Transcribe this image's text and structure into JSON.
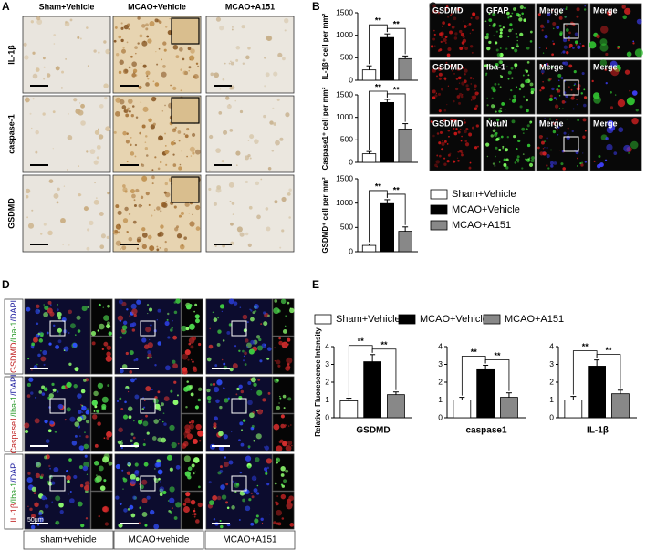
{
  "panel_labels": [
    "A",
    "B",
    "C",
    "D",
    "E"
  ],
  "panel_a": {
    "columns": [
      "Sham+Vehicle",
      "MCAO+Vehicle",
      "MCAO+A151"
    ],
    "rows": [
      "IL-1β",
      "caspase-1",
      "GSDMD"
    ]
  },
  "panel_c": {
    "rows": [
      [
        "GSDMD",
        "GFAP",
        "Merge",
        "Merge"
      ],
      [
        "GSDMD",
        "Iba-1",
        "Merge",
        "Merge"
      ],
      [
        "GSDMD",
        "NeuN",
        "Merge",
        "Merge"
      ]
    ]
  },
  "panel_d": {
    "rows": [
      [
        "GSDMD",
        "/Iba-1",
        "/DAPI"
      ],
      [
        "Caspase1",
        "/Iba-1",
        "/DAPI"
      ],
      [
        "IL-1β",
        "/Iba-1",
        "/DAPI"
      ]
    ],
    "columns": [
      "sham+vehicle",
      "MCAO+vehicle",
      "MCAO+A151"
    ],
    "scale_bar": "50μm"
  },
  "legend_b": {
    "items": [
      {
        "label": "Sham+Vehicle",
        "color": "#ffffff"
      },
      {
        "label": "MCAO+Vehicle",
        "color": "#000000"
      },
      {
        "label": "MCAO+A151",
        "color": "#888888"
      }
    ]
  },
  "legend_e": {
    "items": [
      {
        "label": "Sham+Vehicle",
        "color": "#ffffff"
      },
      {
        "label": "MCAO+Vehicle",
        "color": "#000000"
      },
      {
        "label": "MCAO+A151",
        "color": "#888888"
      }
    ]
  },
  "chart_data": [
    {
      "type": "bar",
      "ylabel": "IL-1β⁺ cell per mm²",
      "values": [
        230,
        950,
        480
      ],
      "errors": [
        90,
        80,
        60
      ],
      "colors": [
        "#ffffff",
        "#000000",
        "#888888"
      ],
      "ylim": [
        0,
        1500
      ],
      "yticks": [
        0,
        500,
        1000,
        1500
      ],
      "annotations": [
        "**",
        "**"
      ]
    },
    {
      "type": "bar",
      "ylabel": "Caspase1⁺ cell per mm²",
      "values": [
        190,
        1330,
        740
      ],
      "errors": [
        50,
        70,
        120
      ],
      "colors": [
        "#ffffff",
        "#000000",
        "#888888"
      ],
      "ylim": [
        0,
        1500
      ],
      "yticks": [
        0,
        500,
        1000,
        1500
      ],
      "annotations": [
        "**",
        "**"
      ]
    },
    {
      "type": "bar",
      "ylabel": "GSDMD⁺ cell per mm²",
      "values": [
        130,
        990,
        420
      ],
      "errors": [
        30,
        80,
        90
      ],
      "colors": [
        "#ffffff",
        "#000000",
        "#888888"
      ],
      "ylim": [
        0,
        1500
      ],
      "yticks": [
        0,
        500,
        1000,
        1500
      ],
      "annotations": [
        "**",
        "**"
      ]
    },
    {
      "type": "bar",
      "ylabel": "Relative Fluorescence Intensity",
      "xlabel": "GSDMD",
      "values": [
        0.95,
        3.15,
        1.3
      ],
      "errors": [
        0.15,
        0.4,
        0.15
      ],
      "colors": [
        "#ffffff",
        "#000000",
        "#888888"
      ],
      "ylim": [
        0,
        4
      ],
      "yticks": [
        0,
        1,
        2,
        3,
        4
      ],
      "annotations": [
        "**",
        "**"
      ]
    },
    {
      "type": "bar",
      "xlabel": "caspase1",
      "values": [
        1.0,
        2.7,
        1.15
      ],
      "errors": [
        0.15,
        0.25,
        0.25
      ],
      "colors": [
        "#ffffff",
        "#000000",
        "#888888"
      ],
      "ylim": [
        0,
        4
      ],
      "yticks": [
        0,
        1,
        2,
        3,
        4
      ],
      "annotations": [
        "**",
        "**"
      ]
    },
    {
      "type": "bar",
      "xlabel": "IL-1β",
      "values": [
        1.0,
        2.9,
        1.35
      ],
      "errors": [
        0.2,
        0.35,
        0.2
      ],
      "colors": [
        "#ffffff",
        "#000000",
        "#888888"
      ],
      "ylim": [
        0,
        4
      ],
      "yticks": [
        0,
        1,
        2,
        3,
        4
      ],
      "annotations": [
        "**",
        "**"
      ]
    }
  ]
}
